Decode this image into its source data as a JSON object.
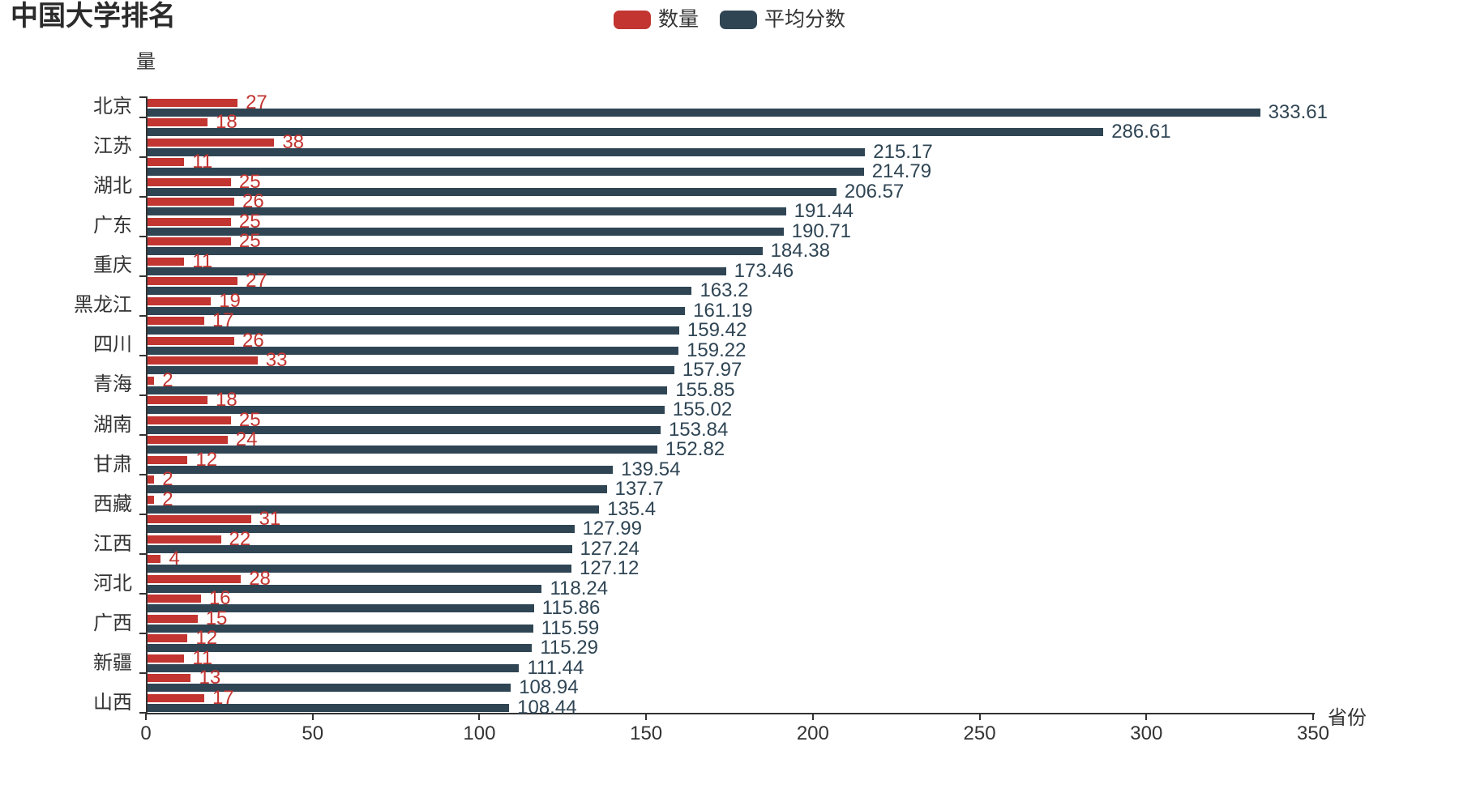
{
  "title": "中国大学排名",
  "legend": {
    "items": [
      {
        "label": "数量",
        "color": "#c23531"
      },
      {
        "label": "平均分数",
        "color": "#2f4554"
      }
    ]
  },
  "chart_data": {
    "type": "bar",
    "orientation": "horizontal",
    "title": "中国大学排名",
    "y_axis_name": "量",
    "x_axis_name": "省份",
    "xlim": [
      0,
      350
    ],
    "x_ticks": [
      0,
      50,
      100,
      150,
      200,
      250,
      300,
      350
    ],
    "grid": false,
    "legend_position": "top-center",
    "series_names": [
      "数量",
      "平均分数"
    ],
    "series_colors": [
      "#c23531",
      "#2f4554"
    ],
    "axis_color": "#333333",
    "categories": [
      {
        "label": "北京",
        "quantity": 27,
        "score": 333.61
      },
      {
        "label": "",
        "quantity": 18,
        "score": 286.61
      },
      {
        "label": "江苏",
        "quantity": 38,
        "score": 215.17
      },
      {
        "label": "",
        "quantity": 11,
        "score": 214.79
      },
      {
        "label": "湖北",
        "quantity": 25,
        "score": 206.57
      },
      {
        "label": "",
        "quantity": 26,
        "score": 191.44
      },
      {
        "label": "广东",
        "quantity": 25,
        "score": 190.71
      },
      {
        "label": "",
        "quantity": 25,
        "score": 184.38
      },
      {
        "label": "重庆",
        "quantity": 11,
        "score": 173.46
      },
      {
        "label": "",
        "quantity": 27,
        "score": 163.2
      },
      {
        "label": "黑龙江",
        "quantity": 19,
        "score": 161.19
      },
      {
        "label": "",
        "quantity": 17,
        "score": 159.42
      },
      {
        "label": "四川",
        "quantity": 26,
        "score": 159.22
      },
      {
        "label": "",
        "quantity": 33,
        "score": 157.97
      },
      {
        "label": "青海",
        "quantity": 2,
        "score": 155.85
      },
      {
        "label": "",
        "quantity": 18,
        "score": 155.02
      },
      {
        "label": "湖南",
        "quantity": 25,
        "score": 153.84
      },
      {
        "label": "",
        "quantity": 24,
        "score": 152.82
      },
      {
        "label": "甘肃",
        "quantity": 12,
        "score": 139.54
      },
      {
        "label": "",
        "quantity": 2,
        "score": 137.7
      },
      {
        "label": "西藏",
        "quantity": 2,
        "score": 135.4
      },
      {
        "label": "",
        "quantity": 31,
        "score": 127.99
      },
      {
        "label": "江西",
        "quantity": 22,
        "score": 127.24
      },
      {
        "label": "",
        "quantity": 4,
        "score": 127.12
      },
      {
        "label": "河北",
        "quantity": 28,
        "score": 118.24
      },
      {
        "label": "",
        "quantity": 16,
        "score": 115.86
      },
      {
        "label": "广西",
        "quantity": 15,
        "score": 115.59
      },
      {
        "label": "",
        "quantity": 12,
        "score": 115.29
      },
      {
        "label": "新疆",
        "quantity": 11,
        "score": 111.44
      },
      {
        "label": "",
        "quantity": 13,
        "score": 108.94
      },
      {
        "label": "山西",
        "quantity": 17,
        "score": 108.44
      }
    ]
  }
}
